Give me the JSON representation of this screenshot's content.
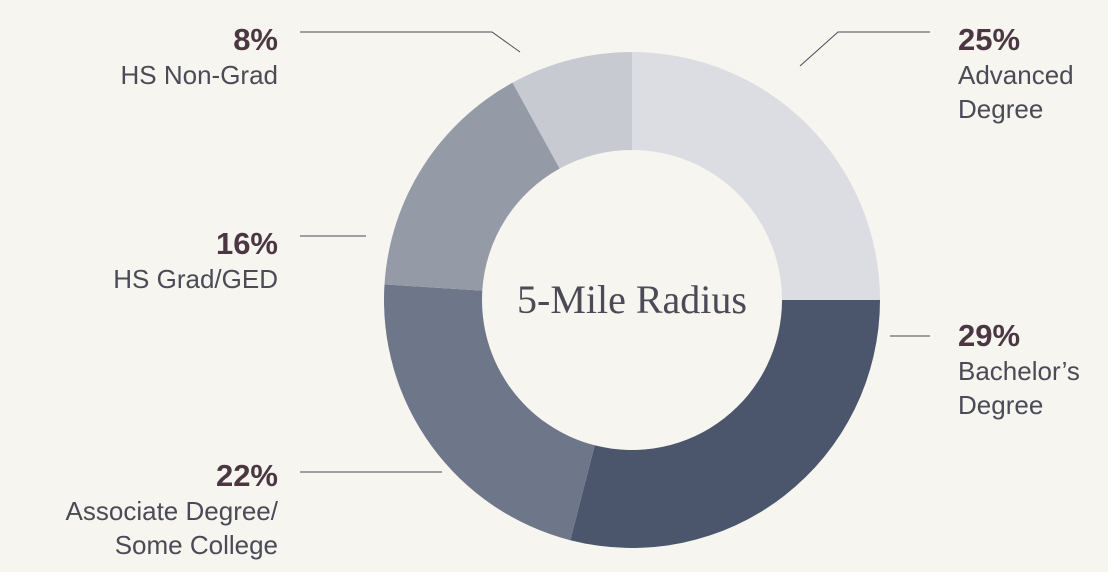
{
  "chart_data": {
    "type": "donut",
    "center_label": "5-Mile Radius",
    "categories": [
      "Advanced\nDegree",
      "Bachelor’s\nDegree",
      "Associate Degree/\nSome College",
      "HS Grad/GED",
      "HS Non-Grad"
    ],
    "values": [
      25,
      29,
      22,
      16,
      8
    ],
    "value_labels": [
      "25%",
      "29%",
      "22%",
      "16%",
      "8%"
    ],
    "colors": [
      "#dcdde2",
      "#4b566d",
      "#6e768a",
      "#959aa7",
      "#c8cad2"
    ]
  }
}
